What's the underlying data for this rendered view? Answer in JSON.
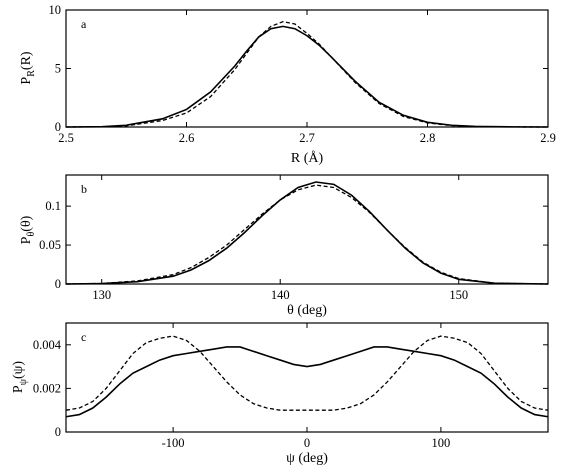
{
  "chart_data": [
    {
      "type": "line",
      "panel_label": "a",
      "xlabel": "R (Å)",
      "ylabel": {
        "main": "P",
        "sub": "R",
        "tail": "(R)"
      },
      "xlim": [
        2.5,
        2.9
      ],
      "ylim": [
        0,
        10
      ],
      "xticks": [
        2.5,
        2.6,
        2.7,
        2.8,
        2.9
      ],
      "yticks": [
        0,
        5,
        10
      ],
      "xtick_labels": [
        "2.5",
        "2.6",
        "2.7",
        "2.8",
        "2.9"
      ],
      "ytick_labels": [
        "0",
        "5",
        "10"
      ],
      "grid": false,
      "series": [
        {
          "style": "solid",
          "x": [
            2.5,
            2.53,
            2.55,
            2.58,
            2.6,
            2.62,
            2.64,
            2.65,
            2.66,
            2.67,
            2.68,
            2.69,
            2.7,
            2.71,
            2.72,
            2.74,
            2.76,
            2.78,
            2.8,
            2.82,
            2.84,
            2.87,
            2.9
          ],
          "y": [
            0,
            0.03,
            0.15,
            0.7,
            1.5,
            3.0,
            5.2,
            6.5,
            7.7,
            8.4,
            8.6,
            8.4,
            7.8,
            7.0,
            6.0,
            3.9,
            2.1,
            1.0,
            0.4,
            0.15,
            0.05,
            0.01,
            0
          ]
        },
        {
          "style": "dashed",
          "x": [
            2.5,
            2.53,
            2.55,
            2.58,
            2.6,
            2.62,
            2.64,
            2.65,
            2.66,
            2.67,
            2.68,
            2.69,
            2.7,
            2.71,
            2.72,
            2.74,
            2.76,
            2.78,
            2.8,
            2.82,
            2.84,
            2.87,
            2.9
          ],
          "y": [
            0,
            0.02,
            0.1,
            0.55,
            1.2,
            2.6,
            4.9,
            6.3,
            7.7,
            8.6,
            9.0,
            8.8,
            8.0,
            7.1,
            6.0,
            3.8,
            2.0,
            0.9,
            0.35,
            0.12,
            0.04,
            0.01,
            0
          ]
        }
      ]
    },
    {
      "type": "line",
      "panel_label": "b",
      "xlabel": "θ (deg)",
      "ylabel": {
        "main": "P",
        "sub": "θ",
        "tail": "(θ)"
      },
      "xlim": [
        128,
        155
      ],
      "ylim": [
        0,
        0.14
      ],
      "xticks": [
        130,
        140,
        150
      ],
      "yticks": [
        0,
        0.05,
        0.1
      ],
      "xtick_labels": [
        "130",
        "140",
        "150"
      ],
      "ytick_labels": [
        "0",
        "0.05",
        "0.1"
      ],
      "grid": false,
      "series": [
        {
          "style": "solid",
          "x": [
            128,
            130,
            132,
            134,
            135,
            136,
            137,
            138,
            139,
            140,
            141,
            142,
            143,
            144,
            145,
            146,
            147,
            148,
            149,
            150,
            152,
            155
          ],
          "y": [
            0,
            0.0005,
            0.003,
            0.01,
            0.018,
            0.03,
            0.046,
            0.066,
            0.088,
            0.108,
            0.124,
            0.131,
            0.128,
            0.114,
            0.093,
            0.069,
            0.046,
            0.027,
            0.014,
            0.006,
            0.001,
            0
          ]
        },
        {
          "style": "dashed",
          "x": [
            128,
            130,
            132,
            134,
            135,
            136,
            137,
            138,
            139,
            140,
            141,
            142,
            143,
            144,
            145,
            146,
            147,
            148,
            149,
            150,
            152,
            155
          ],
          "y": [
            0,
            0.0007,
            0.004,
            0.012,
            0.021,
            0.034,
            0.05,
            0.07,
            0.09,
            0.108,
            0.121,
            0.127,
            0.124,
            0.111,
            0.092,
            0.069,
            0.047,
            0.028,
            0.015,
            0.007,
            0.001,
            0
          ]
        }
      ]
    },
    {
      "type": "line",
      "panel_label": "c",
      "xlabel": "ψ (deg)",
      "ylabel": {
        "main": "P",
        "sub": "ψ",
        "tail": "(ψ)"
      },
      "xlim": [
        -180,
        180
      ],
      "ylim": [
        0,
        0.005
      ],
      "xticks": [
        -100,
        0,
        100
      ],
      "yticks": [
        0,
        0.002,
        0.004
      ],
      "xtick_labels": [
        "-100",
        "0",
        "100"
      ],
      "ytick_labels": [
        "0",
        "0.002",
        "0.004"
      ],
      "grid": false,
      "series": [
        {
          "style": "solid",
          "x": [
            -180,
            -170,
            -160,
            -150,
            -140,
            -130,
            -120,
            -110,
            -100,
            -90,
            -80,
            -70,
            -60,
            -50,
            -40,
            -30,
            -20,
            -10,
            0,
            10,
            20,
            30,
            40,
            50,
            60,
            70,
            80,
            90,
            100,
            110,
            120,
            130,
            140,
            150,
            160,
            170,
            180
          ],
          "y": [
            0.0007,
            0.0008,
            0.0011,
            0.0016,
            0.0022,
            0.0027,
            0.003,
            0.0033,
            0.0035,
            0.0036,
            0.0037,
            0.0038,
            0.0039,
            0.0039,
            0.0037,
            0.0035,
            0.0033,
            0.0031,
            0.003,
            0.0031,
            0.0033,
            0.0035,
            0.0037,
            0.0039,
            0.0039,
            0.0038,
            0.0037,
            0.0036,
            0.0035,
            0.0033,
            0.003,
            0.0027,
            0.0022,
            0.0016,
            0.0011,
            0.0008,
            0.0007
          ]
        },
        {
          "style": "dashed",
          "x": [
            -180,
            -170,
            -160,
            -150,
            -140,
            -130,
            -120,
            -110,
            -100,
            -90,
            -80,
            -70,
            -60,
            -50,
            -40,
            -30,
            -20,
            -10,
            0,
            10,
            20,
            30,
            40,
            50,
            60,
            70,
            80,
            90,
            100,
            110,
            120,
            130,
            140,
            150,
            160,
            170,
            180
          ],
          "y": [
            0.001,
            0.0011,
            0.0014,
            0.002,
            0.0028,
            0.0036,
            0.0041,
            0.0043,
            0.0044,
            0.0042,
            0.0037,
            0.003,
            0.0023,
            0.0017,
            0.0013,
            0.0011,
            0.001,
            0.001,
            0.001,
            0.001,
            0.001,
            0.0011,
            0.0013,
            0.0017,
            0.0023,
            0.003,
            0.0037,
            0.0042,
            0.0044,
            0.0043,
            0.0041,
            0.0036,
            0.0028,
            0.002,
            0.0014,
            0.0011,
            0.001
          ]
        }
      ]
    }
  ]
}
